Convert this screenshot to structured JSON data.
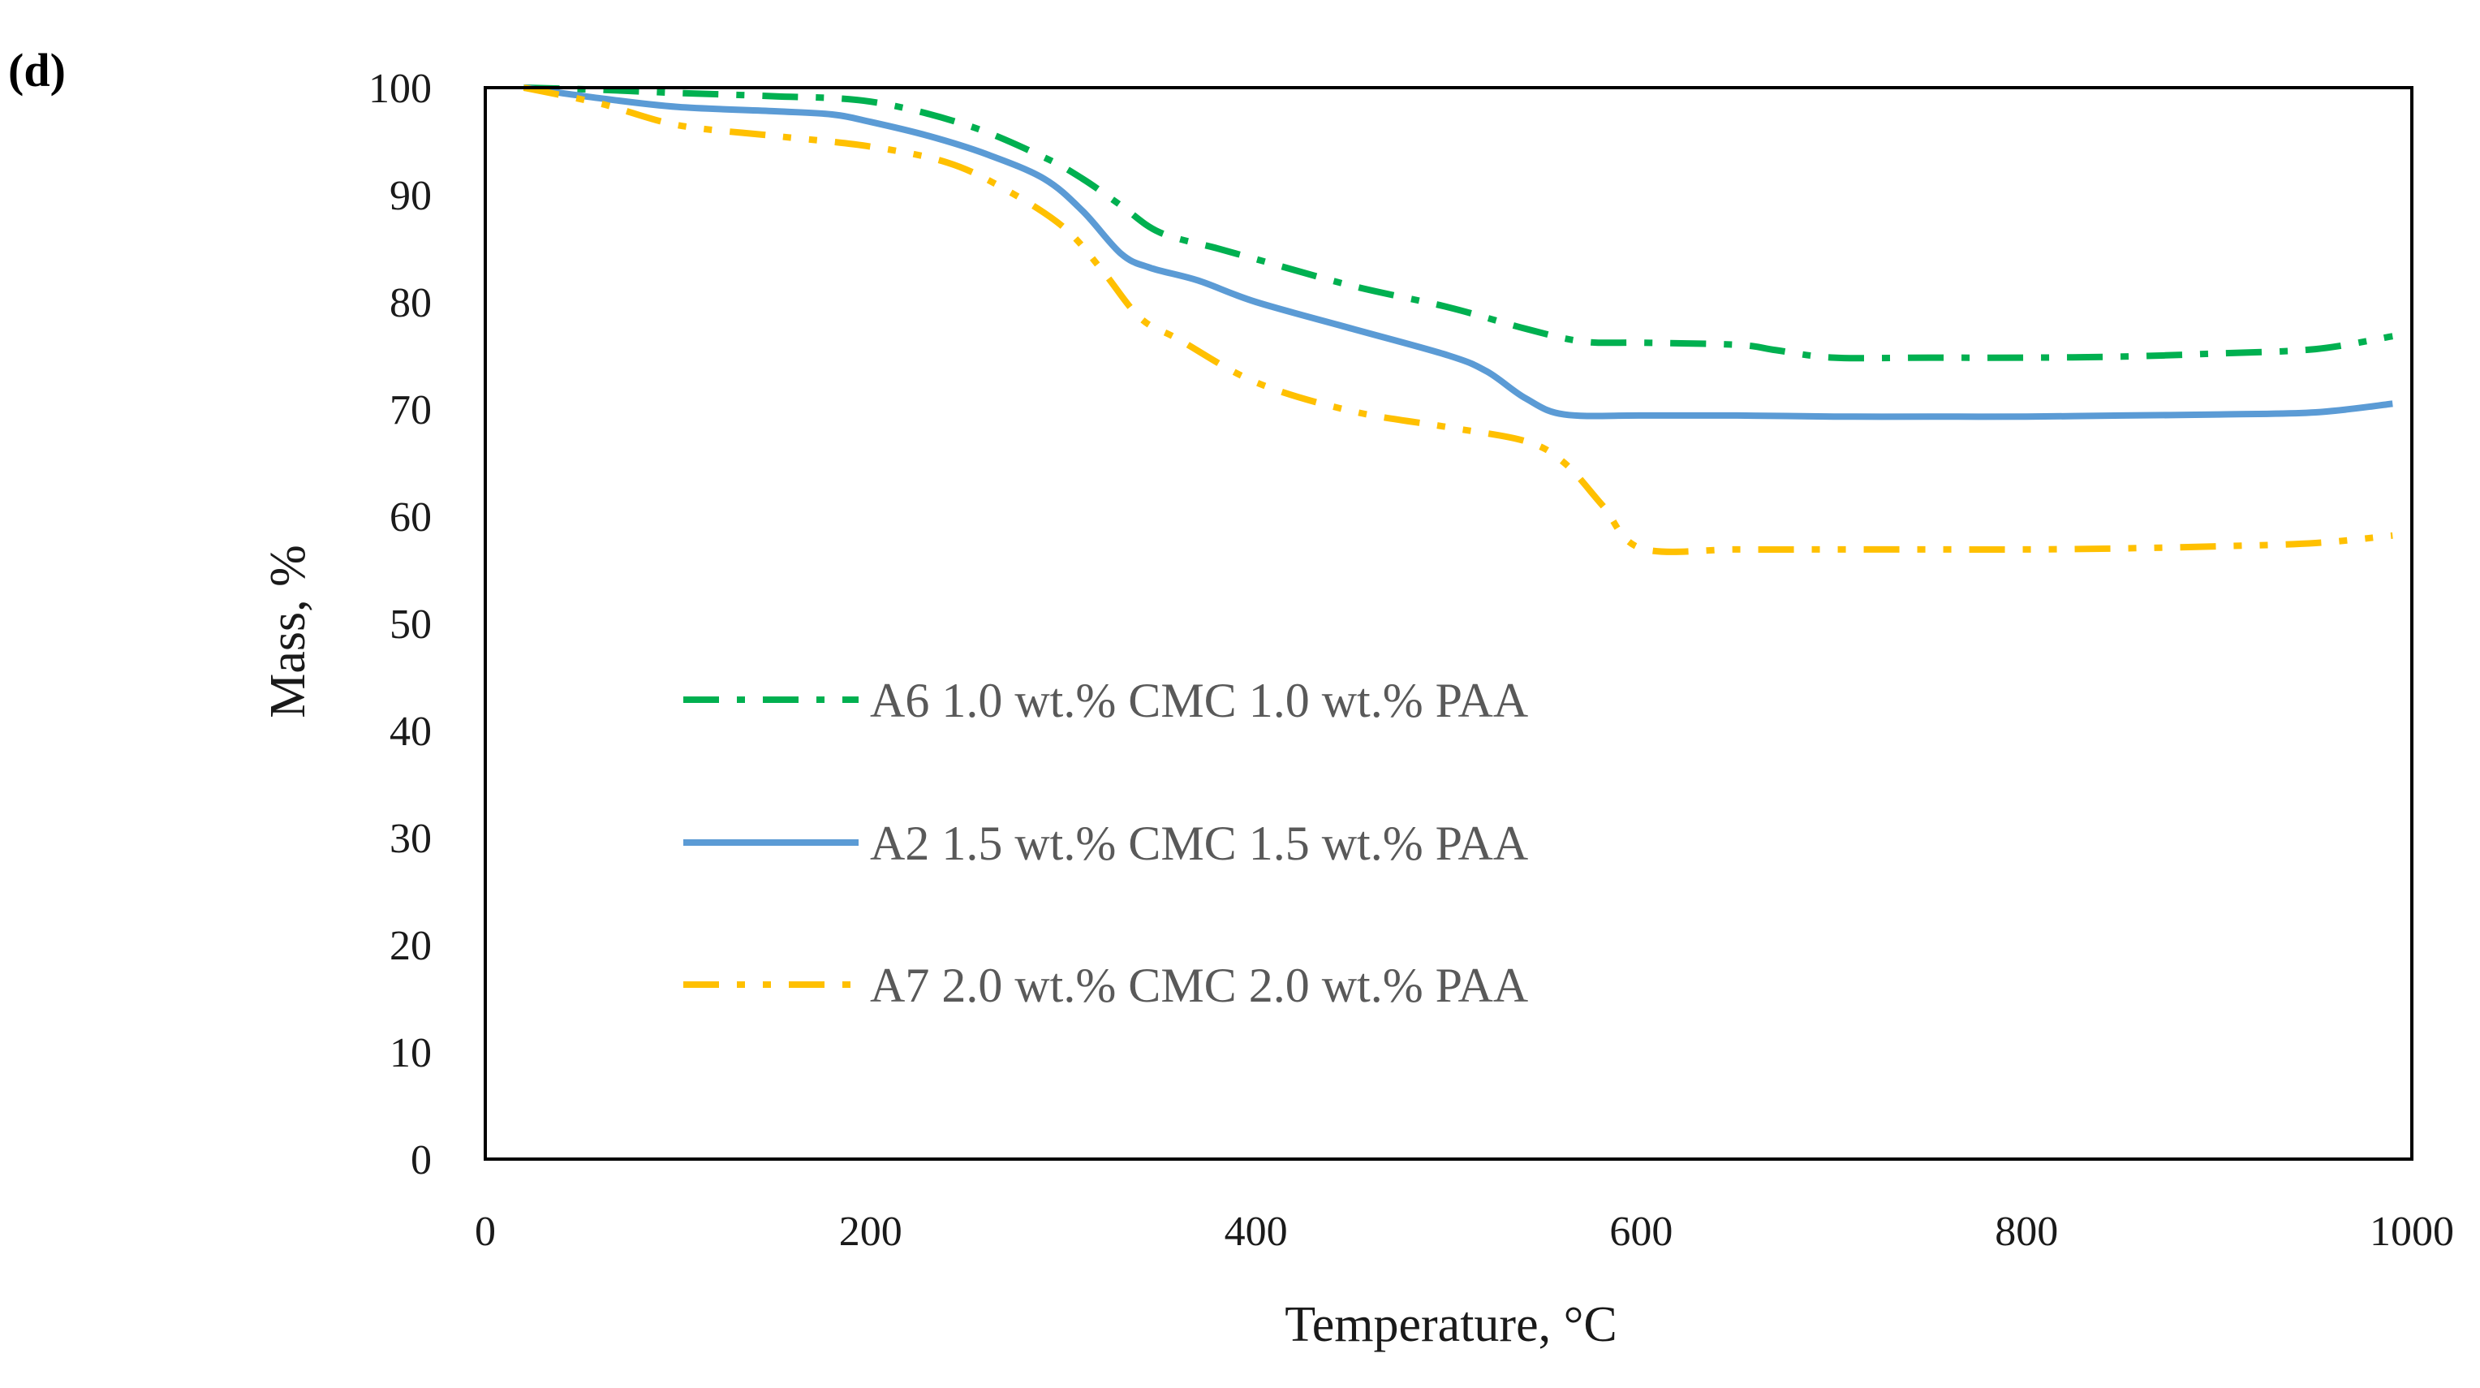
{
  "panel_label": "(d)",
  "chart_data": {
    "type": "line",
    "title": "",
    "xlabel": "Temperature, °C",
    "ylabel": "Mass, %",
    "xlim": [
      0,
      1000
    ],
    "ylim": [
      0,
      100
    ],
    "xticks": [
      0,
      200,
      400,
      600,
      800,
      1000
    ],
    "yticks": [
      0,
      10,
      20,
      30,
      40,
      50,
      60,
      70,
      80,
      90,
      100
    ],
    "grid": false,
    "legend_position": "center-left",
    "series": [
      {
        "name": "A6 1.0 wt.% CMC 1.0 wt.% PAA",
        "color": "#00b050",
        "style": "dash-dot",
        "x": [
          20,
          60,
          100,
          150,
          200,
          250,
          290,
          310,
          330,
          350,
          380,
          400,
          450,
          500,
          540,
          570,
          600,
          650,
          670,
          700,
          750,
          800,
          850,
          900,
          950,
          990
        ],
        "y": [
          100,
          99.8,
          99.5,
          99.2,
          98.7,
          96.5,
          93.5,
          91.5,
          89,
          86.5,
          85,
          84,
          81.5,
          79.5,
          77.5,
          76.3,
          76.2,
          76,
          75.5,
          74.8,
          74.8,
          74.8,
          74.9,
          75.2,
          75.6,
          76.8
        ]
      },
      {
        "name": "A2 1.5 wt.% CMC 1.5 wt.% PAA",
        "color": "#5b9bd5",
        "style": "solid",
        "x": [
          20,
          60,
          100,
          150,
          180,
          200,
          230,
          260,
          290,
          310,
          330,
          345,
          370,
          400,
          450,
          500,
          520,
          540,
          560,
          600,
          650,
          700,
          750,
          800,
          850,
          900,
          950,
          990
        ],
        "y": [
          100,
          99,
          98.2,
          97.8,
          97.5,
          96.8,
          95.5,
          93.8,
          91.5,
          88.5,
          84.5,
          83.2,
          82,
          80,
          77.5,
          75,
          73.5,
          71,
          69.5,
          69.4,
          69.4,
          69.3,
          69.3,
          69.3,
          69.4,
          69.5,
          69.7,
          70.5
        ]
      },
      {
        "name": "A7 2.0 wt.% CMC 2.0 wt.% PAA",
        "color": "#ffc000",
        "style": "dash-dot-dot",
        "x": [
          20,
          60,
          100,
          150,
          200,
          240,
          270,
          300,
          320,
          340,
          360,
          400,
          450,
          500,
          540,
          560,
          580,
          600,
          650,
          700,
          750,
          800,
          850,
          900,
          950,
          990
        ],
        "y": [
          100,
          98.5,
          96.5,
          95.5,
          94.5,
          93,
          90.5,
          87,
          83,
          78.5,
          76.5,
          72.5,
          69.8,
          68.3,
          67,
          65,
          61,
          57,
          56.9,
          56.9,
          56.9,
          56.9,
          57,
          57.2,
          57.5,
          58.2
        ]
      }
    ]
  }
}
